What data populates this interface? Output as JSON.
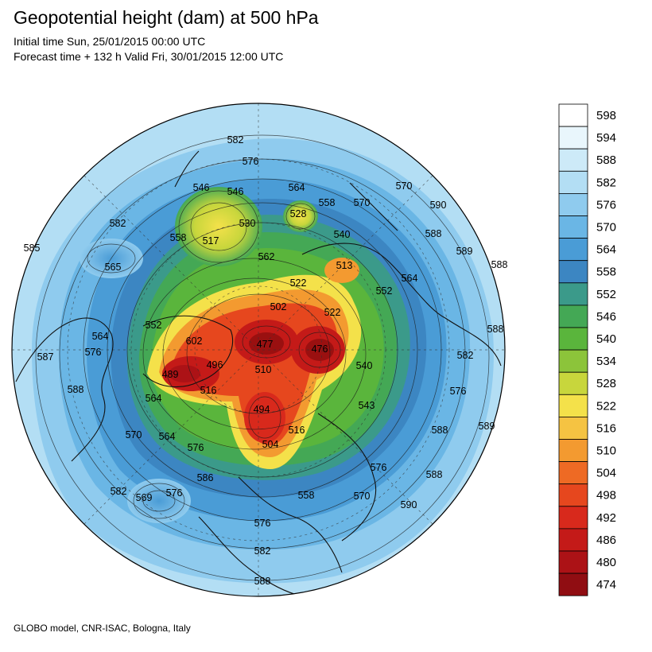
{
  "header": {
    "title": "Geopotential height (dam) at 500 hPa",
    "initial_time": "Initial time Sun, 25/01/2015 00:00 UTC",
    "forecast_time": "Forecast time + 132 h Valid Fri, 30/01/2015 12:00 UTC"
  },
  "footer": {
    "credit": "GLOBO model, CNR-ISAC, Bologna, Italy"
  },
  "map": {
    "projection": "polar stereographic (north pole)",
    "field": "geopotential height 500 hPa (dam)",
    "centers": [
      {
        "value": 477,
        "kind": "low"
      },
      {
        "value": 476,
        "kind": "low"
      },
      {
        "value": 489,
        "kind": "low"
      },
      {
        "value": 494,
        "kind": "low"
      },
      {
        "value": 502,
        "kind": "low"
      },
      {
        "value": 517,
        "kind": "low"
      },
      {
        "value": 513,
        "kind": "low"
      },
      {
        "value": 565,
        "kind": "low"
      },
      {
        "value": 569,
        "kind": "low"
      },
      {
        "value": 586,
        "kind": "high"
      },
      {
        "value": 590,
        "kind": "high"
      },
      {
        "value": 589,
        "kind": "high"
      }
    ],
    "contour_labels": [
      "582",
      "576",
      "546",
      "546",
      "564",
      "558",
      "570",
      "528",
      "530",
      "517",
      "562",
      "540",
      "513",
      "552",
      "564",
      "522",
      "502",
      "477",
      "476",
      "522",
      "602",
      "496",
      "489",
      "510",
      "516",
      "552",
      "564",
      "576",
      "540",
      "543",
      "494",
      "504",
      "516",
      "558",
      "570",
      "564",
      "576",
      "586",
      "569",
      "576",
      "582",
      "576",
      "582",
      "588",
      "558",
      "564",
      "570",
      "576",
      "588",
      "590",
      "588",
      "589",
      "588",
      "589",
      "582",
      "576",
      "588",
      "590",
      "585",
      "565",
      "587",
      "588",
      "582",
      "570",
      "588"
    ],
    "colors": {
      "ocean_outer": "#b3def4",
      "low_core": "#9a1010",
      "coastline": "#111111"
    }
  },
  "colorbar": {
    "levels": [
      "598",
      "594",
      "588",
      "582",
      "576",
      "570",
      "564",
      "558",
      "552",
      "546",
      "540",
      "534",
      "528",
      "522",
      "516",
      "510",
      "504",
      "498",
      "492",
      "486",
      "480",
      "474"
    ],
    "colors": [
      "#ffffff",
      "#e9f6fc",
      "#cdeaf8",
      "#b3def4",
      "#8fcbee",
      "#6ab6e5",
      "#4a9cd6",
      "#3c86c2",
      "#3b9a8a",
      "#44a855",
      "#5ab53c",
      "#8cc43a",
      "#c8d63c",
      "#f4e14a",
      "#f5c342",
      "#f39a30",
      "#ee6a24",
      "#e6471e",
      "#d8291c",
      "#c41a18",
      "#ac1216",
      "#900d12"
    ]
  }
}
